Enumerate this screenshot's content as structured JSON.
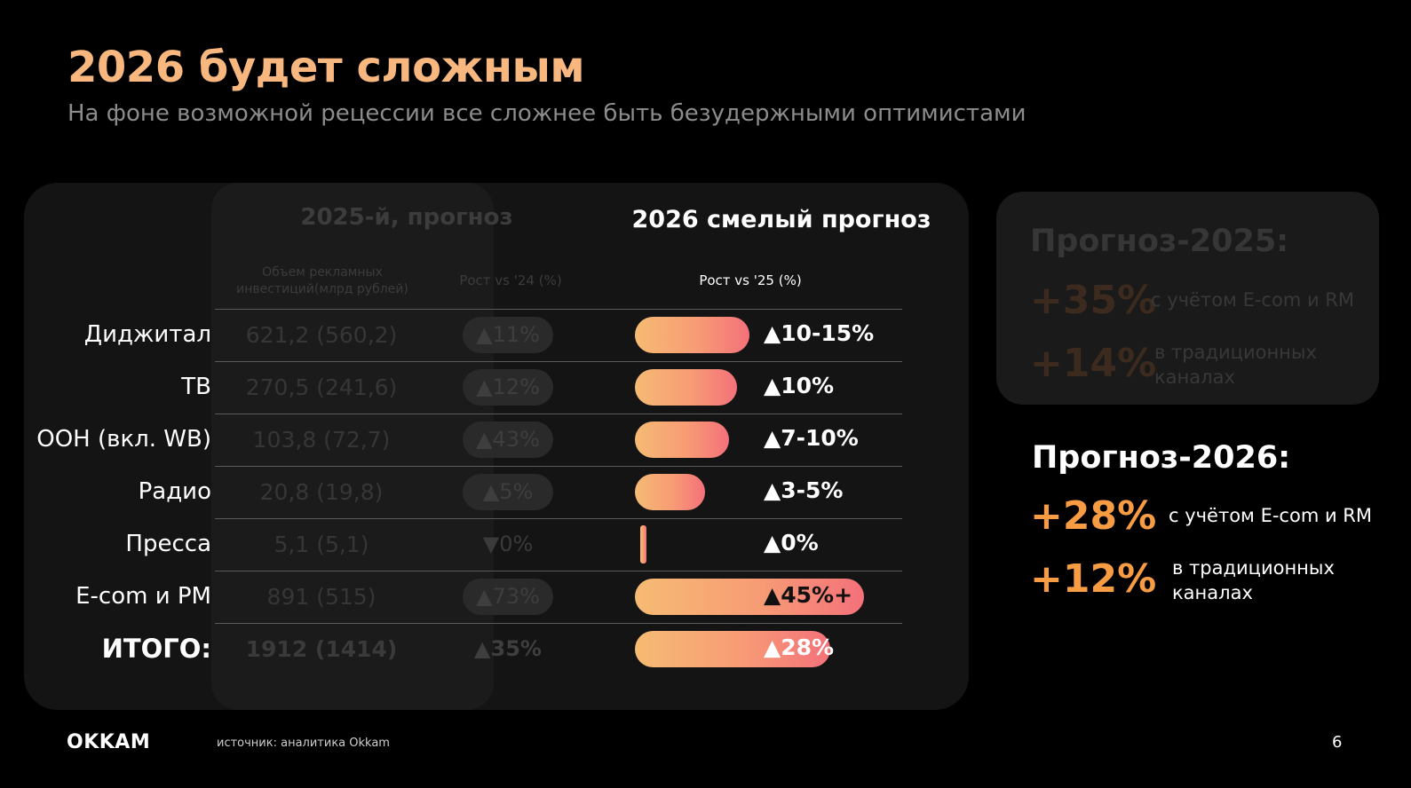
{
  "slide": {
    "title": "2026 будет сложным",
    "subtitle": "На фоне возможной рецессии все сложнее быть безудержными оптимистами"
  },
  "table": {
    "col_2025_title": "2025-й, прогноз",
    "col_2026_title": "2026 смелый прогноз",
    "col_volume_head": "Объем рекламных инвестиций(млрд рублей)",
    "col_growth24_head": "Рост vs '24 (%)",
    "col_growth25_head": "Рост vs '25 (%)"
  },
  "chart_data": {
    "type": "table",
    "title": "2026 смелый прогноз",
    "rows": [
      {
        "label": "Диджитал",
        "volume": "621,2 (560,2)",
        "growth_24": "▲11%",
        "growth_25": "▲10-15%",
        "growth_25_value": 12.5
      },
      {
        "label": "ТВ",
        "volume": "270,5 (241,6)",
        "growth_24": "▲12%",
        "growth_25": "▲10%",
        "growth_25_value": 10
      },
      {
        "label": "ООН (вкл. WB)",
        "volume": "103,8 (72,7)",
        "growth_24": "▲43%",
        "growth_25": "▲7-10%",
        "growth_25_value": 8.5
      },
      {
        "label": "Радио",
        "volume": "20,8 (19,8)",
        "growth_24": "▲5%",
        "growth_25": "▲3-5%",
        "growth_25_value": 4
      },
      {
        "label": "Пресса",
        "volume": "5,1 (5,1)",
        "growth_24": "▼0%",
        "growth_25": "▲0%",
        "growth_25_value": 0
      },
      {
        "label": "E-com  и РМ",
        "volume": "891 (515)",
        "growth_24": "▲73%",
        "growth_25": "▲45%+",
        "growth_25_value": 45
      },
      {
        "label": "ИТОГО:",
        "volume": "1912 (1414)",
        "growth_24": "▲35%",
        "growth_25": "▲28%",
        "growth_25_value": 28
      }
    ]
  },
  "side_2025": {
    "title": "Прогноз-2025:",
    "v1": "+35%",
    "t1": "с учётом E-com и RM",
    "v2": "+14%",
    "t2": "в традиционных каналах"
  },
  "side_2026": {
    "title": "Прогноз-2026:",
    "v1": "+28%",
    "t1": "с учётом E-com и RM",
    "v2": "+12%",
    "t2": "в традиционных каналах"
  },
  "footer": {
    "logo": "OKKAM",
    "source": "источник: аналитика Okkam",
    "page": "6"
  },
  "colors": {
    "accent": "#f79c43",
    "title": "#f7b77f",
    "bar_start": "#f6bb73",
    "bar_end": "#f4717a"
  }
}
